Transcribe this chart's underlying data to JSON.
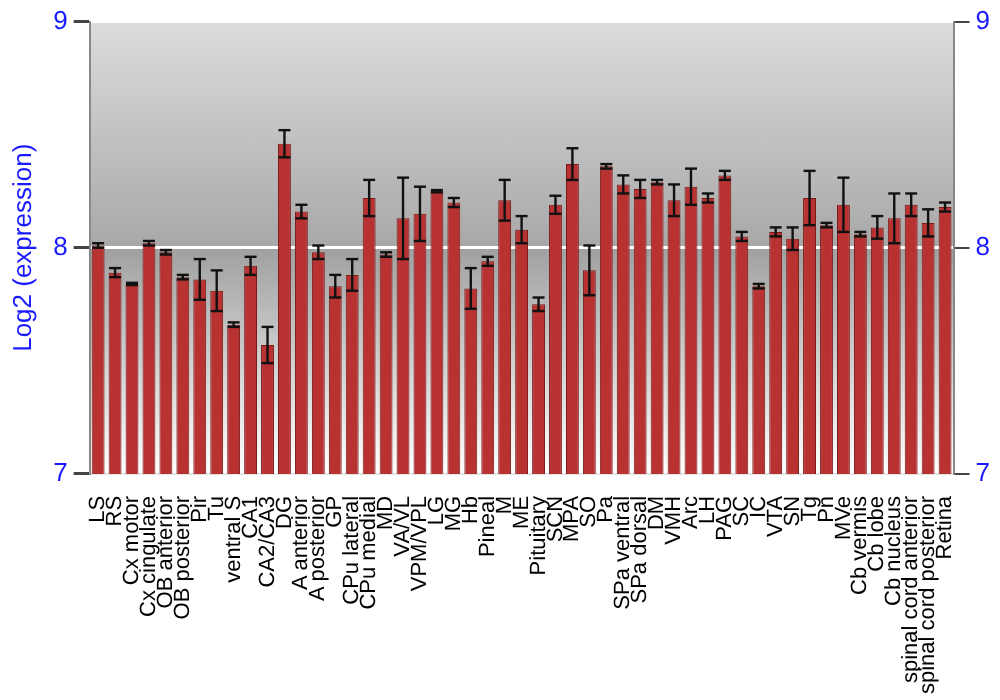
{
  "chart_data": {
    "type": "bar",
    "ylabel": "Log2 (expression)",
    "categories": [
      "LS",
      "RS",
      "Cx motor",
      "Cx cingulate",
      "OB anterior",
      "OB posterior",
      "Pir",
      "Tu",
      "ventral S",
      "CA1",
      "CA2/CA3",
      "DG",
      "A anterior",
      "A posterior",
      "GP",
      "CPu lateral",
      "CPu medial",
      "MD",
      "VA/VL",
      "VPM/VPL",
      "LG",
      "MG",
      "Hb",
      "Pineal",
      "M",
      "ME",
      "Pituitary",
      "SCN",
      "MPA",
      "SO",
      "Pa",
      "SPa ventral",
      "SPa dorsal",
      "DM",
      "VMH",
      "Arc",
      "LH",
      "PAG",
      "SC",
      "IC",
      "VTA",
      "SN",
      "Tg",
      "Pn",
      "MVe",
      "Cb vermis",
      "Cb lobe",
      "Cb nucleus",
      "spinal cord anterior",
      "spinal cord posterior",
      "Retina"
    ],
    "values": [
      8.01,
      7.89,
      7.84,
      8.02,
      7.98,
      7.87,
      7.86,
      7.81,
      7.66,
      7.92,
      7.57,
      8.46,
      8.16,
      7.98,
      7.83,
      7.88,
      8.22,
      7.97,
      8.13,
      8.15,
      8.25,
      8.2,
      7.82,
      7.94,
      8.21,
      8.08,
      7.75,
      8.19,
      8.37,
      7.9,
      8.36,
      8.28,
      8.26,
      8.29,
      8.21,
      8.27,
      8.22,
      8.32,
      8.05,
      7.83,
      8.07,
      8.04,
      8.22,
      8.1,
      8.19,
      8.06,
      8.09,
      8.13,
      8.19,
      8.11,
      8.18
    ],
    "errors": [
      0.01,
      0.02,
      0.005,
      0.01,
      0.01,
      0.01,
      0.09,
      0.09,
      0.01,
      0.04,
      0.08,
      0.06,
      0.03,
      0.03,
      0.05,
      0.07,
      0.08,
      0.01,
      0.18,
      0.12,
      0.005,
      0.02,
      0.09,
      0.02,
      0.09,
      0.06,
      0.03,
      0.04,
      0.07,
      0.11,
      0.01,
      0.04,
      0.04,
      0.01,
      0.07,
      0.08,
      0.02,
      0.02,
      0.02,
      0.01,
      0.02,
      0.05,
      0.12,
      0.01,
      0.12,
      0.01,
      0.05,
      0.11,
      0.05,
      0.06,
      0.02
    ],
    "color": "#b83232",
    "ylim": [
      7,
      9
    ],
    "yticks": [
      7,
      8,
      9
    ],
    "y2lim": [
      7,
      9
    ],
    "y2ticks": [
      7,
      8,
      9
    ],
    "grid": "y",
    "legend": false
  }
}
